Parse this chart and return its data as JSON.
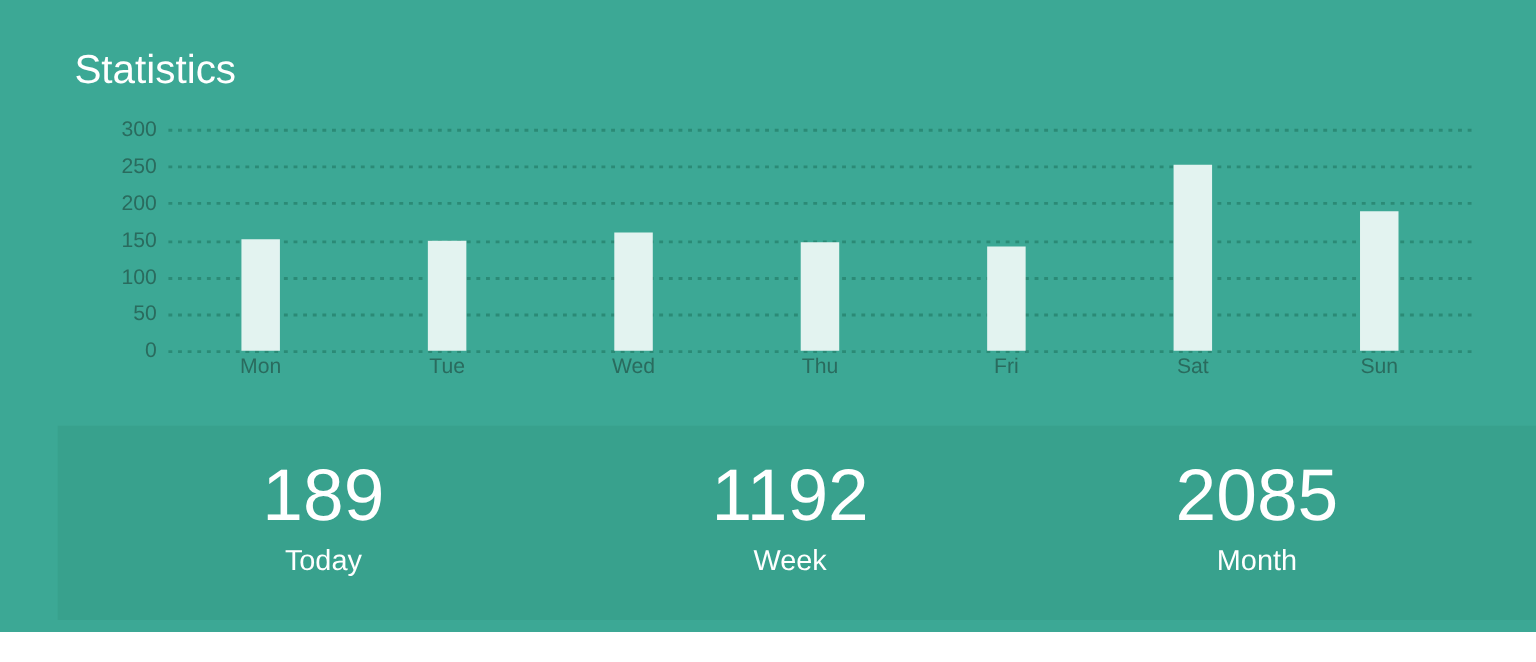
{
  "chart_data": [
    {
      "type": "bar",
      "title": "Statistics",
      "categories": [
        "Mon",
        "Tue",
        "Wed",
        "Thu",
        "Fri",
        "Sat",
        "Sun"
      ],
      "values": [
        151,
        149,
        160,
        147,
        141,
        252,
        189
      ],
      "color": "#e3f3f0",
      "ylim": [
        0,
        300
      ],
      "yticks": [
        0,
        50,
        100,
        150,
        200,
        250,
        300
      ],
      "grid": "y",
      "line_style": "dotted"
    },
    {
      "type": "other",
      "annotations": [
        "189",
        "Today",
        "1192",
        "Week",
        "2085",
        "Month"
      ]
    }
  ]
}
